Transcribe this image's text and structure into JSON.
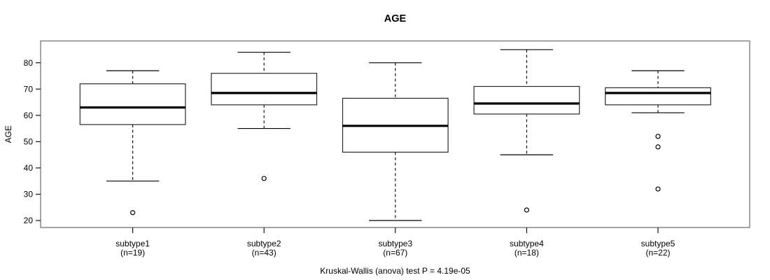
{
  "title": "AGE",
  "caption": "Kruskal-Wallis (anova) test P = 4.19e-05",
  "colors": {
    "line": "#000000",
    "frame": "#757575",
    "median": "#000000",
    "box_fill": "#ffffff",
    "background": "#ffffff",
    "text": "#000000"
  },
  "chart_data": {
    "type": "boxplot",
    "title": "AGE",
    "xlabel": "",
    "ylabel": "AGE",
    "y_ticks": [
      20,
      30,
      40,
      50,
      60,
      70,
      80
    ],
    "ylim": [
      17.5,
      88.5
    ],
    "grid": false,
    "whisker_style": "dashed",
    "groups": [
      {
        "label": "subtype1",
        "n_label": "(n=19)",
        "n": 19,
        "whisker_low": 35,
        "q1": 56.5,
        "median": 63,
        "q3": 72,
        "whisker_high": 77,
        "outliers": [
          23
        ]
      },
      {
        "label": "subtype2",
        "n_label": "(n=43)",
        "n": 43,
        "whisker_low": 55,
        "q1": 64,
        "median": 68.5,
        "q3": 76,
        "whisker_high": 84,
        "outliers": [
          36
        ]
      },
      {
        "label": "subtype3",
        "n_label": "(n=67)",
        "n": 67,
        "whisker_low": 20,
        "q1": 46,
        "median": 56,
        "q3": 66.5,
        "whisker_high": 80,
        "outliers": []
      },
      {
        "label": "subtype4",
        "n_label": "(n=18)",
        "n": 18,
        "whisker_low": 45,
        "q1": 60.5,
        "median": 64.5,
        "q3": 71,
        "whisker_high": 85,
        "outliers": [
          24
        ]
      },
      {
        "label": "subtype5",
        "n_label": "(n=22)",
        "n": 22,
        "whisker_low": 61,
        "q1": 64,
        "median": 68.5,
        "q3": 70.5,
        "whisker_high": 77,
        "outliers": [
          52,
          48,
          32
        ]
      }
    ],
    "footnote": "Kruskal-Wallis (anova) test P = 4.19e-05"
  }
}
